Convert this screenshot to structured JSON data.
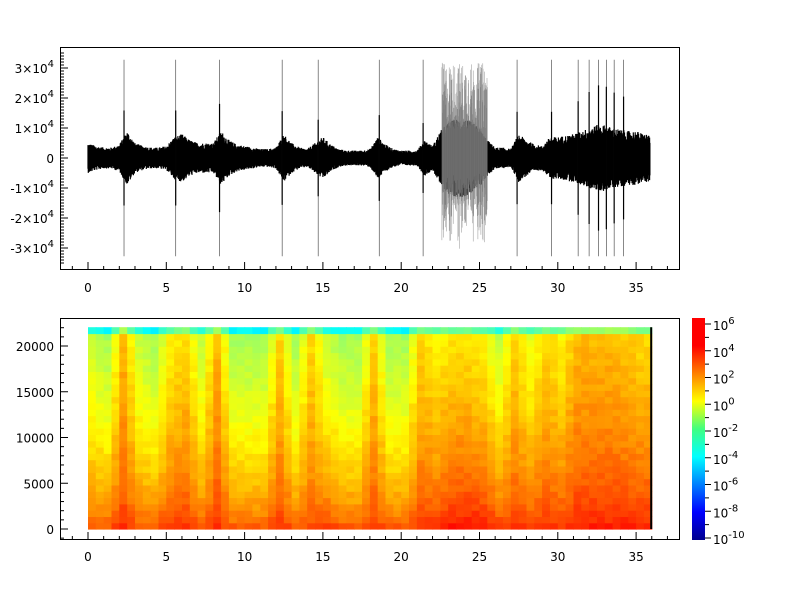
{
  "chart_data": [
    {
      "type": "line",
      "title": "",
      "xlabel": "",
      "ylabel": "",
      "xlim": [
        -1.8,
        37.8
      ],
      "ylim": [
        -36000,
        36000
      ],
      "x_ticks": [
        "0",
        "5",
        "10",
        "15",
        "20",
        "25",
        "30",
        "35"
      ],
      "y_ticks": [
        {
          "v": 30000,
          "label": "3×10",
          "exp": "4"
        },
        {
          "v": 20000,
          "label": "2×10",
          "exp": "4"
        },
        {
          "v": 10000,
          "label": "1×10",
          "exp": "4"
        },
        {
          "v": 0,
          "label": "0",
          "exp": ""
        },
        {
          "v": -10000,
          "label": "-1×10",
          "exp": "4"
        },
        {
          "v": -20000,
          "label": "-2×10",
          "exp": "4"
        },
        {
          "v": -30000,
          "label": "-3×10",
          "exp": "4"
        }
      ],
      "duration": 35.9,
      "envelope_times_step": 0.5,
      "envelope": [
        5000,
        4000,
        3500,
        3500,
        4500,
        9000,
        5000,
        4000,
        3500,
        3500,
        4000,
        7000,
        8000,
        6000,
        5000,
        5000,
        5000,
        9000,
        6000,
        4500,
        4000,
        3500,
        3000,
        3000,
        3500,
        8000,
        5000,
        3500,
        3000,
        5000,
        7000,
        4500,
        3000,
        2500,
        2500,
        2500,
        3000,
        7000,
        4500,
        3000,
        2500,
        2500,
        2500,
        6000,
        4000,
        9000,
        12000,
        13000,
        13000,
        12000,
        10000,
        6000,
        3500,
        3500,
        3000,
        8000,
        6000,
        4500,
        4000,
        7000,
        7000,
        7500,
        8000,
        9000,
        10000,
        11000,
        11000,
        10000,
        9500,
        9000,
        9000,
        8000
      ],
      "spikes": [
        2.3,
        5.6,
        8.4,
        12.4,
        14.7,
        18.6,
        21.4,
        27.4,
        29.6,
        31.3,
        32.0,
        32.6,
        33.1,
        33.6,
        34.2
      ],
      "spike_amplitude": 32767,
      "clipped_noise_interval": [
        22.6,
        25.5
      ],
      "color": "#000000"
    },
    {
      "type": "heatmap",
      "title": "",
      "xlabel": "",
      "ylabel": "",
      "xlim": [
        -1.8,
        37.8
      ],
      "ylim": [
        -1200,
        23000
      ],
      "x_ticks": [
        "0",
        "5",
        "10",
        "15",
        "20",
        "25",
        "30",
        "35"
      ],
      "y_ticks": [
        "0",
        "5000",
        "10000",
        "15000",
        "20000"
      ],
      "freq_max": 22050,
      "time_step": 1,
      "low_freq_log10_power": [
        3,
        3,
        3.5,
        3,
        3,
        3.5,
        3.5,
        3,
        3.5,
        3,
        3,
        3,
        3.5,
        3,
        3,
        3.5,
        3,
        3,
        3.5,
        3,
        3,
        3.5,
        3.5,
        4,
        4.2,
        4,
        3.5,
        3.5,
        3.5,
        3.5,
        3.5,
        3.8,
        3.8,
        3.8,
        3.8,
        3.8,
        3.8
      ],
      "high_freq_log10_power": [
        -1,
        -1.5,
        1,
        -1,
        -1.5,
        0,
        0.5,
        -1,
        1,
        -1.5,
        -1.5,
        -1.5,
        0.5,
        -1.5,
        0.5,
        -1,
        -1.5,
        -1.5,
        0.5,
        -1.5,
        -1.5,
        0.5,
        0,
        0.3,
        0.3,
        0,
        -1,
        0.5,
        -0.5,
        0.5,
        0,
        1,
        1,
        1,
        0.8,
        0.5,
        0.5
      ],
      "colormap": "jet",
      "color_scale": "log",
      "color_range": [
        1e-10,
        1000000.0
      ],
      "colorbar_ticks": [
        {
          "base": "10",
          "exp": "6"
        },
        {
          "base": "10",
          "exp": "4"
        },
        {
          "base": "10",
          "exp": "2"
        },
        {
          "base": "10",
          "exp": "0"
        },
        {
          "base": "10",
          "exp": "-2"
        },
        {
          "base": "10",
          "exp": "-4"
        },
        {
          "base": "10",
          "exp": "-6"
        },
        {
          "base": "10",
          "exp": "-8"
        },
        {
          "base": "10",
          "exp": "-10"
        }
      ]
    }
  ]
}
